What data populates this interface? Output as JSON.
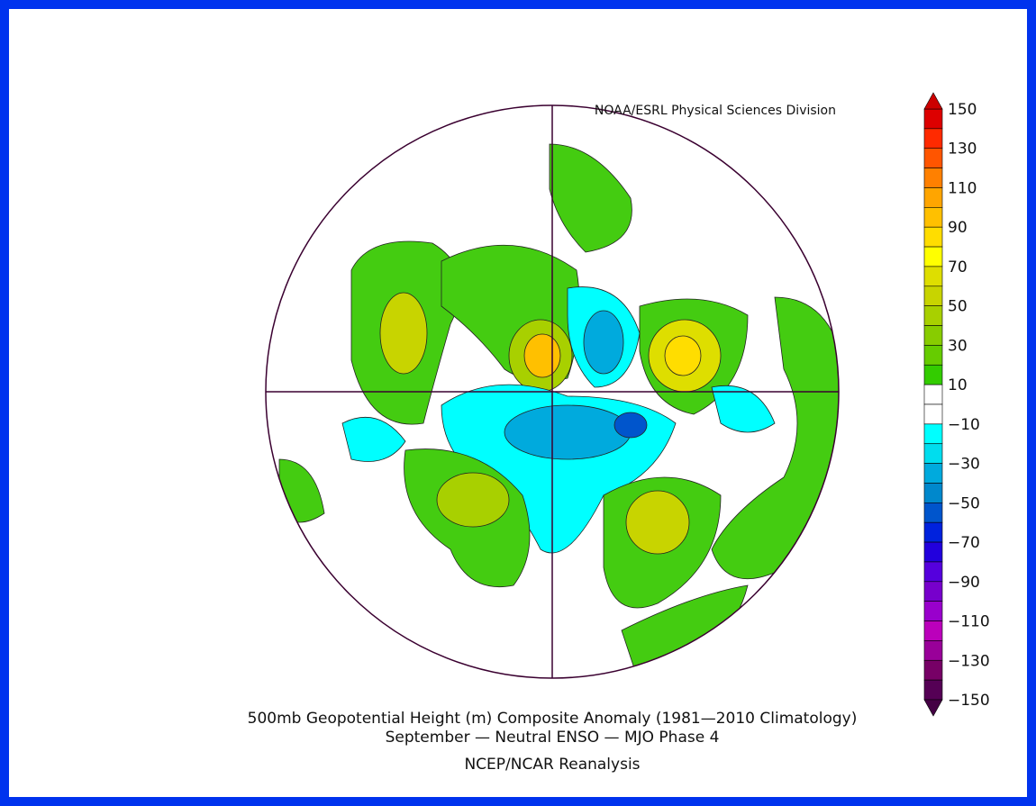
{
  "header": {
    "credit": "NOAA/ESRL Physical Sciences Division"
  },
  "footer": {
    "title_line_1": "500mb Geopotential Height (m) Composite Anomaly (1981—2010 Climatology)",
    "title_line_2": "September — Neutral ENSO — MJO Phase 4",
    "source": "NCEP/NCAR Reanalysis"
  },
  "colorbar": {
    "labels": [
      "150",
      "130",
      "110",
      "90",
      "70",
      "50",
      "30",
      "10",
      "−10",
      "−30",
      "−50",
      "−70",
      "−90",
      "−110",
      "−130",
      "−150"
    ],
    "colors": [
      "#dd0000",
      "#ff2a00",
      "#ff5500",
      "#ff8000",
      "#ffa500",
      "#ffc000",
      "#ffdd00",
      "#ffff00",
      "#dede00",
      "#c8d400",
      "#a8d000",
      "#88cc00",
      "#66cc00",
      "#33cc00",
      "#ffffff",
      "#ffffff",
      "#00ffff",
      "#00ddee",
      "#00aadd",
      "#0088cc",
      "#0055cc",
      "#0022dd",
      "#2200dd",
      "#5500dd",
      "#7700cc",
      "#9900cc",
      "#bb00bb",
      "#990099",
      "#770066",
      "#550055"
    ],
    "top_color": "#cc0000",
    "bottom_color": "#440044"
  }
}
